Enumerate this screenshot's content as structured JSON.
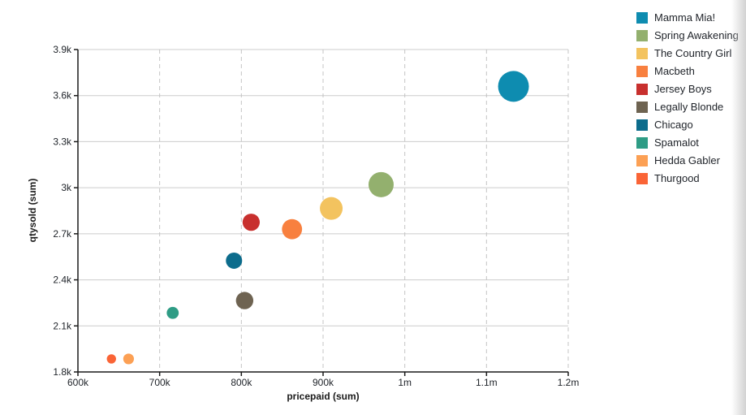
{
  "chart_data": {
    "type": "scatter",
    "title": "",
    "xlabel": "pricepaid (sum)",
    "ylabel": "qtysold (sum)",
    "xlim": [
      600000,
      1200000
    ],
    "ylim": [
      1800,
      3900
    ],
    "grid": {
      "horizontal": "solid",
      "vertical": "dashed",
      "on": true
    },
    "legend_position": "right",
    "x_ticks": [
      {
        "value": 600000,
        "label": "600k"
      },
      {
        "value": 700000,
        "label": "700k"
      },
      {
        "value": 800000,
        "label": "800k"
      },
      {
        "value": 900000,
        "label": "900k"
      },
      {
        "value": 1000000,
        "label": "1m"
      },
      {
        "value": 1100000,
        "label": "1.1m"
      },
      {
        "value": 1200000,
        "label": "1.2m"
      }
    ],
    "y_ticks": [
      {
        "value": 1800,
        "label": "1.8k"
      },
      {
        "value": 2100,
        "label": "2.1k"
      },
      {
        "value": 2400,
        "label": "2.4k"
      },
      {
        "value": 2700,
        "label": "2.7k"
      },
      {
        "value": 3000,
        "label": "3k"
      },
      {
        "value": 3300,
        "label": "3.3k"
      },
      {
        "value": 3600,
        "label": "3.6k"
      },
      {
        "value": 3900,
        "label": "3.9k"
      }
    ],
    "series": [
      {
        "name": "Mamma Mia!",
        "color": "#0e8cb0",
        "x": 1133000,
        "y": 3660,
        "radius_px": 19
      },
      {
        "name": "Spring Awakening",
        "color": "#93b06e",
        "x": 971000,
        "y": 3020,
        "radius_px": 15.5
      },
      {
        "name": "The Country Girl",
        "color": "#f3c35f",
        "x": 910000,
        "y": 2865,
        "radius_px": 14
      },
      {
        "name": "Macbeth",
        "color": "#f8803f",
        "x": 862000,
        "y": 2730,
        "radius_px": 12.4
      },
      {
        "name": "Jersey Boys",
        "color": "#c8302e",
        "x": 812000,
        "y": 2775,
        "radius_px": 10.6
      },
      {
        "name": "Legally Blonde",
        "color": "#6e6351",
        "x": 804000,
        "y": 2265,
        "radius_px": 10.7
      },
      {
        "name": "Chicago",
        "color": "#0c6c8c",
        "x": 791000,
        "y": 2525,
        "radius_px": 10
      },
      {
        "name": "Spamalot",
        "color": "#2e9c85",
        "x": 716000,
        "y": 2185,
        "radius_px": 7.4
      },
      {
        "name": "Hedda Gabler",
        "color": "#fca054",
        "x": 662000,
        "y": 1885,
        "radius_px": 6.6
      },
      {
        "name": "Thurgood",
        "color": "#fa6436",
        "x": 641000,
        "y": 1885,
        "radius_px": 5.7
      }
    ]
  },
  "legend": {
    "items": [
      "Mamma Mia!",
      "Spring Awakening",
      "The Country Girl",
      "Macbeth",
      "Jersey Boys",
      "Legally Blonde",
      "Chicago",
      "Spamalot",
      "Hedda Gabler",
      "Thurgood"
    ]
  },
  "colors": {
    "axis_line": "#1a1a1a",
    "tick_label": "#21252b",
    "grid_solid": "#cccccc",
    "grid_dashed": "#c4c4c4",
    "background": "#ffffff"
  }
}
